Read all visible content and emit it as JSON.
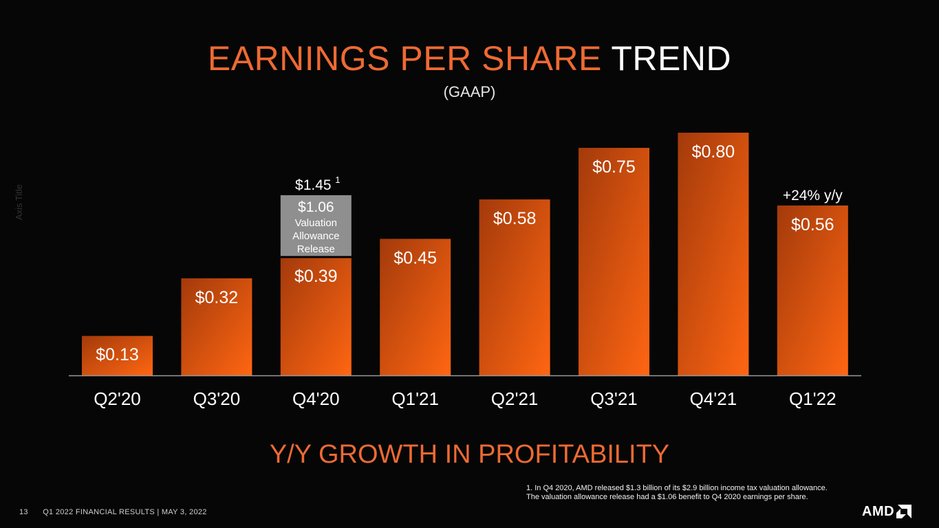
{
  "title": {
    "accent": "EARNINGS PER SHARE",
    "white": "TREND"
  },
  "subtitle": "(GAAP)",
  "axis_title": "Axis Title",
  "tagline": "Y/Y GROWTH IN PROFITABILITY",
  "footnote": {
    "line1": "1. In Q4 2020, AMD released $1.3 billion of its $2.9 billion income tax valuation allowance.",
    "line2": "The valuation allowance release had a $1.06 benefit to Q4 2020 earnings per share."
  },
  "footer": {
    "page": "13",
    "text": "Q1 2022 FINANCIAL RESULTS  |  MAY 3, 2022"
  },
  "logo": {
    "text": "AMD",
    "icon": "amd-arrow-icon"
  },
  "colors": {
    "accent": "#ee6a33",
    "bar_dark": "#a33a0b",
    "bar_light": "#ff6612",
    "allowance": "#8f8f8f"
  },
  "chart_data": {
    "type": "bar",
    "categories": [
      "Q2'20",
      "Q3'20",
      "Q4'20",
      "Q1'21",
      "Q2'21",
      "Q3'21",
      "Q4'21",
      "Q1'22"
    ],
    "values": [
      0.13,
      0.32,
      0.39,
      0.45,
      0.58,
      0.75,
      0.8,
      0.56
    ],
    "value_labels": [
      "$0.13",
      "$0.32",
      "$0.39",
      "$0.45",
      "$0.58",
      "$0.75",
      "$0.80",
      "$0.56"
    ],
    "stacked_segment": {
      "category": "Q4'20",
      "value": 1.06,
      "label": "$1.06",
      "note_lines": [
        "Valuation",
        "Allowance",
        "Release"
      ],
      "total_label": "$1.45",
      "total_superscript": "1"
    },
    "annotations": [
      {
        "category": "Q1'22",
        "text": "+24% y/y"
      }
    ],
    "ylabel": "Axis Title",
    "ylim": [
      0,
      1.45
    ]
  }
}
